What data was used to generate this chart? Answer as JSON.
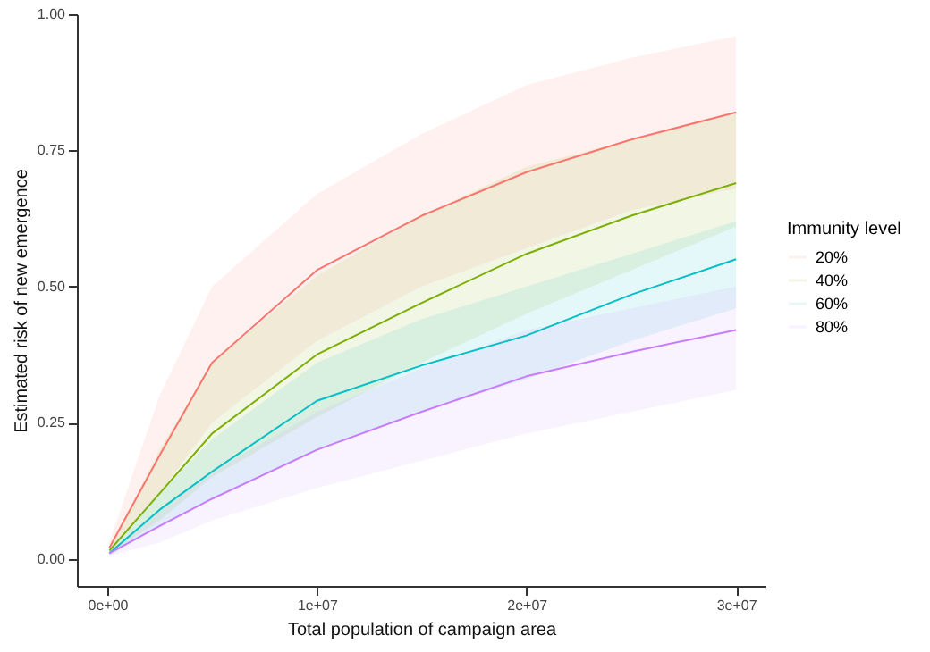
{
  "chart_data": {
    "type": "line",
    "xlabel": "Total population of campaign area",
    "ylabel": "Estimated risk of new emergence",
    "legend_title": "Immunity level",
    "x": [
      100000,
      2500000,
      5000000,
      10000000,
      15000000,
      20000000,
      25000000,
      30000000
    ],
    "series": [
      {
        "name": "20%",
        "color": "#f8766d",
        "values": [
          0.02,
          0.19,
          0.36,
          0.53,
          0.63,
          0.71,
          0.77,
          0.82
        ],
        "lower": [
          0.01,
          0.12,
          0.25,
          0.4,
          0.5,
          0.57,
          0.64,
          0.68
        ],
        "upper": [
          0.03,
          0.3,
          0.5,
          0.67,
          0.78,
          0.87,
          0.92,
          0.96
        ]
      },
      {
        "name": "40%",
        "color": "#7cae00",
        "values": [
          0.015,
          0.12,
          0.23,
          0.375,
          0.47,
          0.56,
          0.63,
          0.69
        ],
        "lower": [
          0.01,
          0.07,
          0.15,
          0.26,
          0.36,
          0.45,
          0.53,
          0.61
        ],
        "upper": [
          0.02,
          0.2,
          0.36,
          0.52,
          0.63,
          0.72,
          0.77,
          0.82
        ]
      },
      {
        "name": "60%",
        "color": "#00bfc4",
        "values": [
          0.01,
          0.09,
          0.16,
          0.29,
          0.355,
          0.41,
          0.485,
          0.55
        ],
        "lower": [
          0.005,
          0.06,
          0.11,
          0.2,
          0.27,
          0.33,
          0.4,
          0.46
        ],
        "upper": [
          0.015,
          0.12,
          0.22,
          0.36,
          0.44,
          0.5,
          0.56,
          0.62
        ]
      },
      {
        "name": "80%",
        "color": "#c77cff",
        "values": [
          0.01,
          0.06,
          0.11,
          0.2,
          0.27,
          0.335,
          0.38,
          0.42
        ],
        "lower": [
          0.005,
          0.03,
          0.07,
          0.13,
          0.18,
          0.23,
          0.27,
          0.31
        ],
        "upper": [
          0.015,
          0.09,
          0.16,
          0.27,
          0.35,
          0.42,
          0.46,
          0.5
        ]
      }
    ],
    "xlim": [
      -1450000,
      31400000
    ],
    "ylim": [
      -0.05,
      1.0
    ],
    "xticks": [
      {
        "value": 0,
        "label": "0e+00"
      },
      {
        "value": 10000000,
        "label": "1e+07"
      },
      {
        "value": 20000000,
        "label": "2e+07"
      },
      {
        "value": 30000000,
        "label": "3e+07"
      }
    ],
    "yticks": [
      {
        "value": 0,
        "label": "0.00"
      },
      {
        "value": 0.25,
        "label": "0.25"
      },
      {
        "value": 0.5,
        "label": "0.50"
      },
      {
        "value": 0.75,
        "label": "0.75"
      },
      {
        "value": 1,
        "label": "1.00"
      }
    ],
    "grid": false,
    "legend": "right",
    "line_style": "solid"
  }
}
